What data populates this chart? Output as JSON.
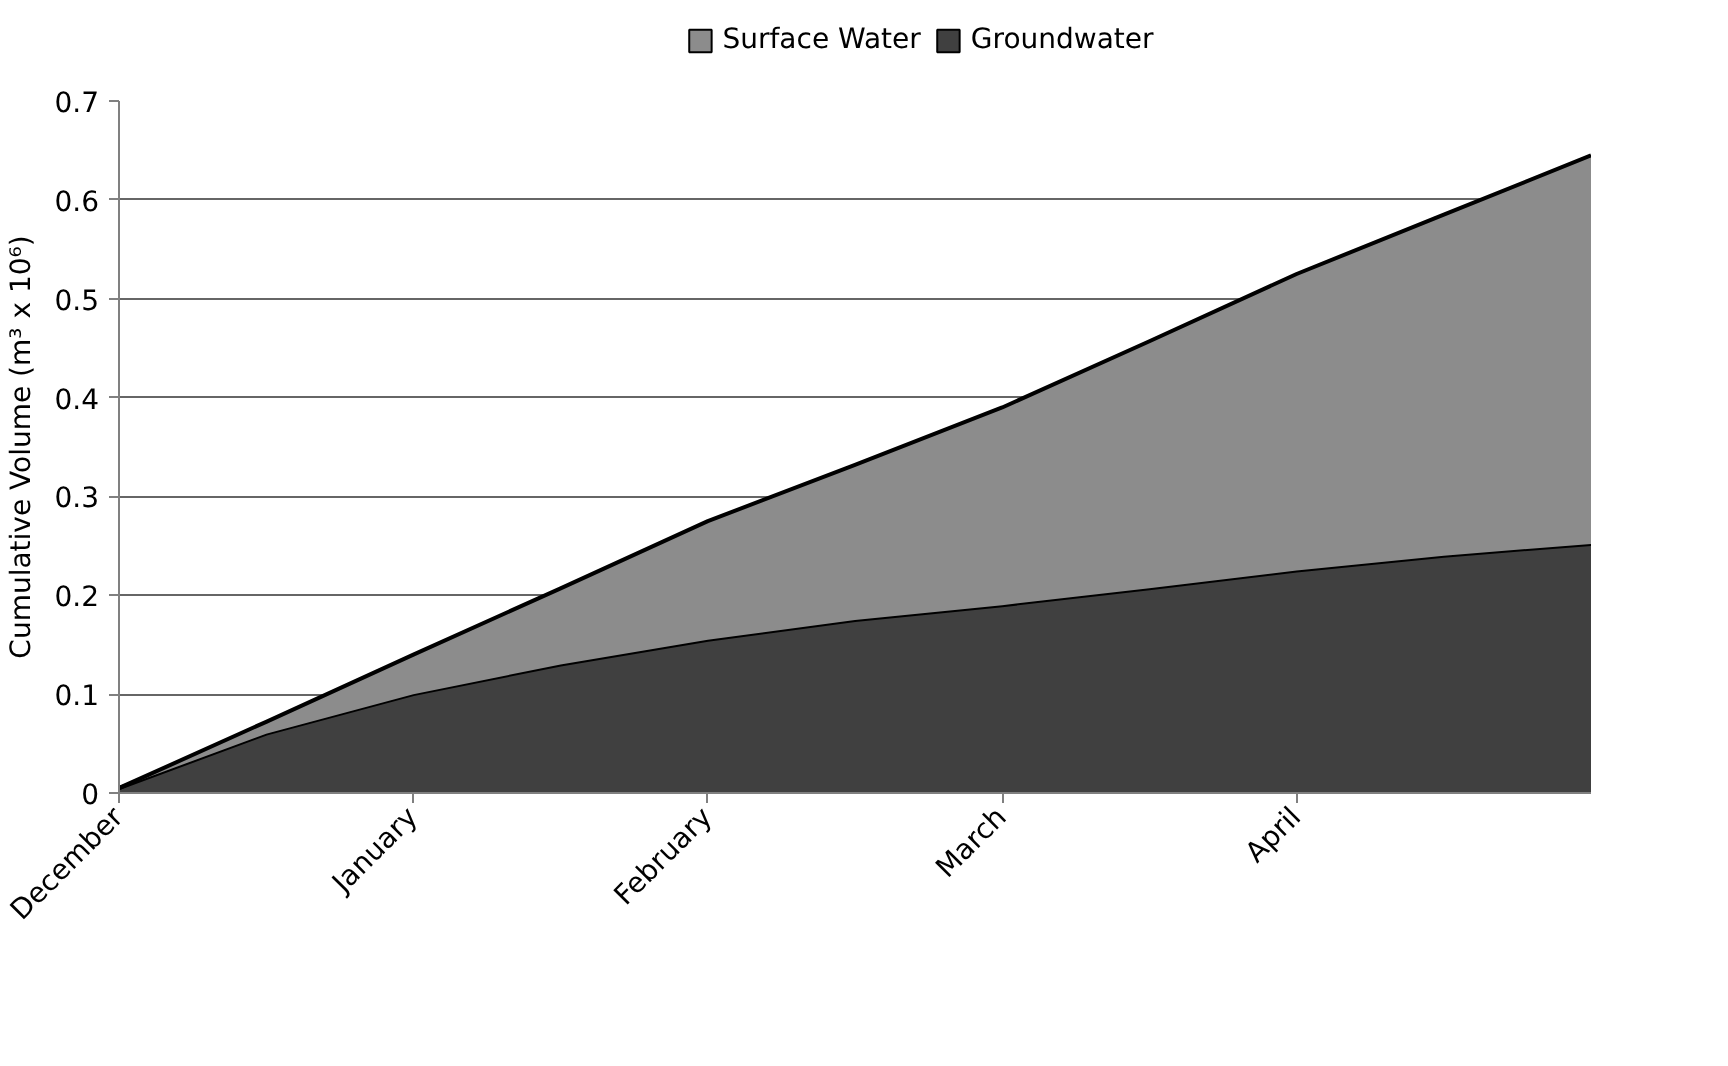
{
  "chart_data": {
    "type": "area",
    "stacked": true,
    "ylabel": "Cumulative Volume (m³ x 10⁶)",
    "categories": [
      "December",
      null,
      "January",
      null,
      "February",
      null,
      "March",
      null,
      "April",
      null,
      null
    ],
    "series": [
      {
        "name": "Groundwater",
        "color": "#404040",
        "values": [
          0.005,
          0.06,
          0.1,
          0.13,
          0.155,
          0.175,
          0.19,
          0.207,
          0.225,
          0.24,
          0.252
        ]
      },
      {
        "name": "Surface Water",
        "color": "#8c8c8c",
        "values": [
          0,
          0.012,
          0.04,
          0.077,
          0.12,
          0.157,
          0.2,
          0.25,
          0.3,
          0.345,
          0.393
        ]
      }
    ],
    "ylim": [
      0,
      0.7
    ],
    "yticks": [
      0,
      0.1,
      0.2,
      0.3,
      0.4,
      0.5,
      0.6,
      0.7
    ],
    "grid": "y",
    "legend": "top"
  }
}
